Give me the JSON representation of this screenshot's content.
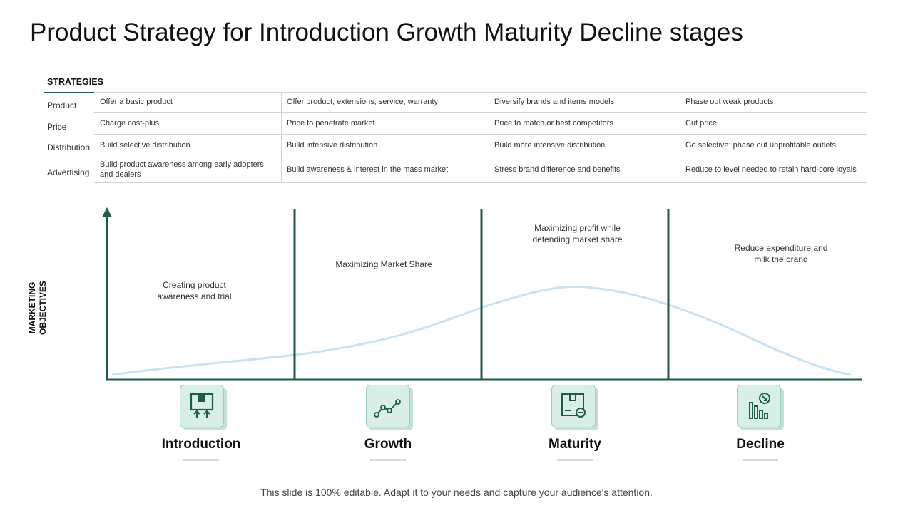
{
  "title": "Product Strategy for Introduction Growth Maturity Decline stages",
  "strategies": {
    "heading": "STRATEGIES",
    "rows": [
      {
        "label": "Product",
        "cells": [
          "Offer a basic product",
          "Offer product, extensions, service, warranty",
          "Diversify brands and items models",
          "Phase out weak products"
        ]
      },
      {
        "label": "Price",
        "cells": [
          "Charge cost-plus",
          "Price to penetrate market",
          "Price to match or best competitors",
          "Cut price"
        ]
      },
      {
        "label": "Distribution",
        "cells": [
          "Build selective distribution",
          "Build intensive distribution",
          "Build more intensive distribution",
          "Go selective: phase out unprofitable outlets"
        ]
      },
      {
        "label": "Advertising",
        "cells": [
          "Build product awareness among early adopters and dealers",
          "Build awareness & interest in the mass market",
          "Stress brand difference and benefits",
          "Reduce to level needed to retain hard-core loyals"
        ]
      }
    ]
  },
  "diagram": {
    "y_axis_label": "MARKETING OBJECTIVES",
    "objectives": [
      "Creating product awareness and trial",
      "Maximizing Market Share",
      "Maximizing profit while defending market share",
      "Reduce expenditure and milk the brand"
    ],
    "stages": [
      {
        "label": "Introduction",
        "icon": "box-arrows-up-icon"
      },
      {
        "label": "Growth",
        "icon": "line-trend-icon"
      },
      {
        "label": "Maturity",
        "icon": "box-minus-icon"
      },
      {
        "label": "Decline",
        "icon": "bar-chart-decline-icon"
      }
    ],
    "colors": {
      "axis": "#1f5a4a",
      "curve": "#c7e3f3",
      "icon_bg": "#d8efe6",
      "icon_stroke": "#1f5a4a"
    }
  },
  "footer": "This slide is 100% editable. Adapt it to your needs and capture your audience's attention."
}
